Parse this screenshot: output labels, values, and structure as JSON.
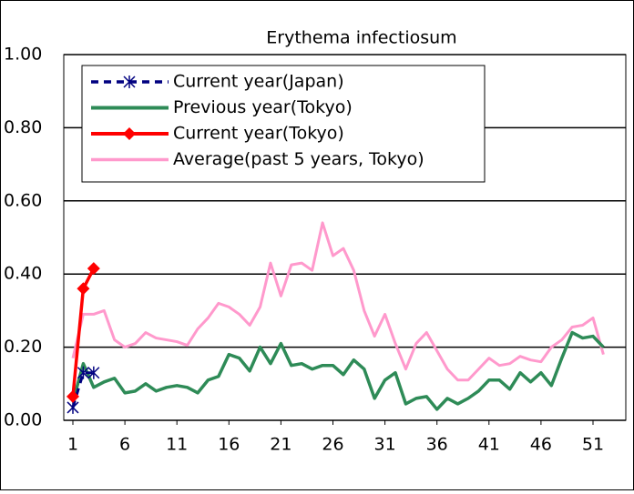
{
  "chart_data": {
    "type": "line",
    "title": "Erythema infectiosum",
    "categories": [
      "1",
      null,
      null,
      null,
      null,
      "6",
      null,
      null,
      null,
      null,
      "11",
      null,
      null,
      null,
      null,
      "16",
      null,
      null,
      null,
      null,
      "21",
      null,
      null,
      null,
      null,
      "26",
      null,
      null,
      null,
      null,
      "31",
      null,
      null,
      null,
      null,
      "36",
      null,
      null,
      null,
      null,
      "41",
      null,
      null,
      null,
      null,
      "46",
      null,
      null,
      null,
      null,
      "51",
      null
    ],
    "series": [
      {
        "name": "Current year(Japan)",
        "color": "#000080",
        "values": [
          0.035,
          0.13,
          0.13,
          null,
          null,
          null,
          null,
          null,
          null,
          null,
          null,
          null,
          null,
          null,
          null,
          null,
          null,
          null,
          null,
          null,
          null,
          null,
          null,
          null,
          null,
          null,
          null,
          null,
          null,
          null,
          null,
          null,
          null,
          null,
          null,
          null,
          null,
          null,
          null,
          null,
          null,
          null,
          null,
          null,
          null,
          null,
          null,
          null,
          null,
          null,
          null,
          null
        ]
      },
      {
        "name": "Previous year(Tokyo)",
        "color": "#2e8b57",
        "values": [
          0.05,
          0.155,
          0.09,
          0.105,
          0.115,
          0.075,
          0.08,
          0.1,
          0.08,
          0.09,
          0.095,
          0.09,
          0.075,
          0.11,
          0.12,
          0.18,
          0.17,
          0.135,
          0.2,
          0.155,
          0.21,
          0.15,
          0.155,
          0.14,
          0.15,
          0.15,
          0.125,
          0.165,
          0.14,
          0.06,
          0.11,
          0.13,
          0.045,
          0.06,
          0.065,
          0.03,
          0.06,
          0.045,
          0.06,
          0.08,
          0.11,
          0.11,
          0.085,
          0.13,
          0.105,
          0.13,
          0.095,
          0.17,
          0.24,
          0.225,
          0.23,
          0.2
        ]
      },
      {
        "name": "Current year(Tokyo)",
        "color": "#ff0000",
        "values": [
          0.065,
          0.36,
          0.415,
          null,
          null,
          null,
          null,
          null,
          null,
          null,
          null,
          null,
          null,
          null,
          null,
          null,
          null,
          null,
          null,
          null,
          null,
          null,
          null,
          null,
          null,
          null,
          null,
          null,
          null,
          null,
          null,
          null,
          null,
          null,
          null,
          null,
          null,
          null,
          null,
          null,
          null,
          null,
          null,
          null,
          null,
          null,
          null,
          null,
          null,
          null,
          null,
          null
        ]
      },
      {
        "name": "Average(past 5 years, Tokyo)",
        "color": "#ff99cc",
        "values": [
          0.17,
          0.29,
          0.29,
          0.3,
          0.22,
          0.2,
          0.21,
          0.24,
          0.225,
          0.22,
          0.215,
          0.205,
          0.25,
          0.28,
          0.32,
          0.31,
          0.29,
          0.26,
          0.31,
          0.43,
          0.34,
          0.425,
          0.43,
          0.41,
          0.54,
          0.45,
          0.47,
          0.41,
          0.3,
          0.23,
          0.29,
          0.21,
          0.14,
          0.21,
          0.24,
          0.19,
          0.14,
          0.11,
          0.11,
          0.14,
          0.17,
          0.15,
          0.155,
          0.175,
          0.165,
          0.16,
          0.2,
          0.22,
          0.255,
          0.26,
          0.28,
          0.18
        ]
      }
    ],
    "ylim": [
      0,
      1
    ],
    "yticks": [
      {
        "value": 0,
        "label": "0.00"
      },
      {
        "value": 0.2,
        "label": "0.20"
      },
      {
        "value": 0.4,
        "label": "0.40"
      },
      {
        "value": 0.6,
        "label": "0.60"
      },
      {
        "value": 0.8,
        "label": "0.80"
      },
      {
        "value": 1,
        "label": "1.00"
      }
    ],
    "grid": true
  }
}
